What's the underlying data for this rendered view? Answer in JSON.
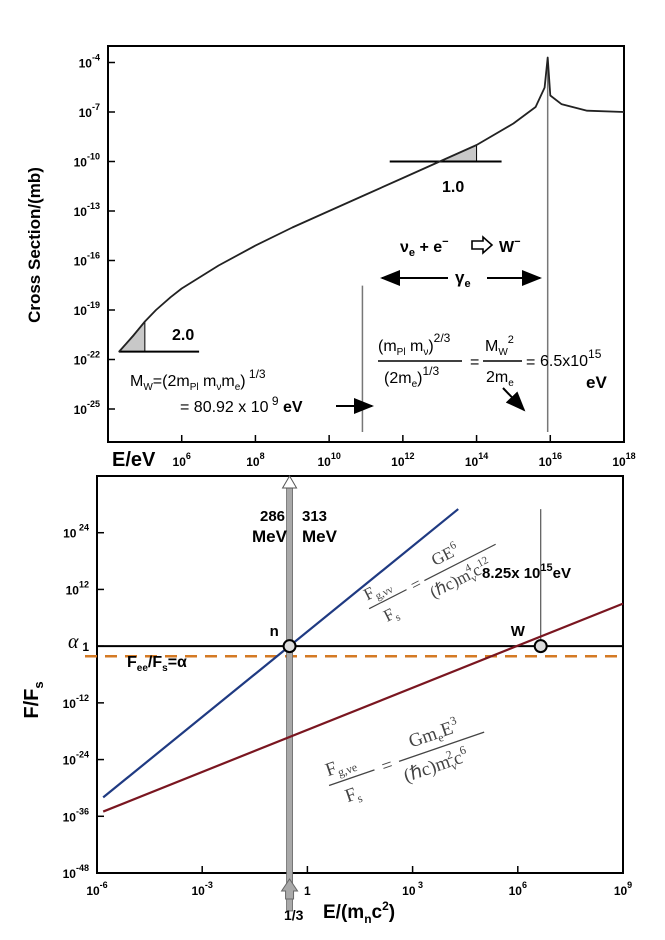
{
  "chart_data": [
    {
      "type": "line",
      "ylabel": "Cross Section/(mb)",
      "xlabel": "E/eV",
      "x_scale": "log",
      "y_scale": "log",
      "xlim_eV": [
        10000.0,
        1e+18
      ],
      "ylim_mb": [
        1e-27,
        0.001
      ],
      "x_ticks": [
        {
          "label": "10",
          "sup": "6",
          "value": 1000000.0
        },
        {
          "label": "10",
          "sup": "8",
          "value": 100000000.0
        },
        {
          "label": "10",
          "sup": "10",
          "value": 10000000000.0
        },
        {
          "label": "10",
          "sup": "12",
          "value": 1000000000000.0
        },
        {
          "label": "10",
          "sup": "14",
          "value": 100000000000000.0
        },
        {
          "label": "10",
          "sup": "16",
          "value": 1e+16
        },
        {
          "label": "10",
          "sup": "18",
          "value": 1e+18
        }
      ],
      "y_ticks": [
        {
          "label": "10",
          "sup": "-4",
          "value": 0.0001
        },
        {
          "label": "10",
          "sup": "-7",
          "value": 1e-07
        },
        {
          "label": "10",
          "sup": "-10",
          "value": 1e-10
        },
        {
          "label": "10",
          "sup": "-13",
          "value": 1e-13
        },
        {
          "label": "10",
          "sup": "-16",
          "value": 1e-16
        },
        {
          "label": "10",
          "sup": "-19",
          "value": 1e-19
        },
        {
          "label": "10",
          "sup": "-22",
          "value": 1e-22
        },
        {
          "label": "10",
          "sup": "-25",
          "value": 1e-25
        }
      ],
      "series": [
        {
          "points_eV_mb": [
            [
              20000.0,
              3e-22
            ],
            [
              50000.0,
              3e-21
            ],
            [
              100000.0,
              2e-20
            ],
            [
              200000.0,
              1e-19
            ],
            [
              500000.0,
              6e-19
            ],
            [
              1000000.0,
              2e-18
            ],
            [
              10000000.0,
              5e-17
            ],
            [
              100000000.0,
              8e-16
            ],
            [
              1000000000.0,
              1e-14
            ],
            [
              10000000000.0,
              1e-13
            ],
            [
              100000000000.0,
              1e-12
            ],
            [
              1000000000000.0,
              1e-11
            ],
            [
              10000000000000.0,
              1e-10
            ],
            [
              100000000000000.0,
              1e-09
            ],
            [
              1000000000000000.0,
              2e-08
            ],
            [
              4000000000000000.0,
              2e-07
            ],
            [
              7000000000000000.0,
              3e-06
            ],
            [
              8500000000000000.0,
              0.0002
            ],
            [
              1e+16,
              1e-06
            ],
            [
              2e+16,
              3e-07
            ],
            [
              1e+17,
              1.2e-07
            ],
            [
              1e+18,
              1e-07
            ]
          ]
        }
      ],
      "annotations": {
        "slope_low": "2.0",
        "slope_mid": "1.0",
        "reaction": {
          "a": "ν",
          "a_sub": "e",
          "b": " + e",
          "b_sup": "−",
          "c": "W",
          "c_sup": "−"
        },
        "gamma": {
          "main": "γ",
          "sub": "e"
        },
        "mw_formula": {
          "line1_a": "M",
          "line1_sub": "W",
          "line1_b": "=(2m",
          "line1_sub2": "Pl",
          "line1_c": " m",
          "line1_sub3": "ν",
          "line1_d": "m",
          "line1_sub4": "e",
          "line1_e": ")",
          "line1_sup": " 1/3",
          "line2": "= 80.92 x 10",
          "line2_sup": " 9",
          "line2_unit": " eV"
        },
        "ratio_formula": {
          "num_a": "(m",
          "num_sub": "Pl",
          "num_b": " m",
          "num_sub2": "ν",
          "num_c": ")",
          "num_sup": "2/3",
          "den_a": "(2m",
          "den_sub": "e",
          "den_b": ")",
          "den_sup": "1/3",
          "eq": "=",
          "mw_a": "M",
          "mw_sub": "W",
          "mw_sup": "2",
          "mw_den_a": "2m",
          "mw_den_sub": "e",
          "eq2": "=",
          "value": "6.5x10",
          "value_sup": "15",
          "unit": "eV"
        }
      }
    },
    {
      "type": "line",
      "ylabel": "F/F",
      "ylabel_sub": "s",
      "xlabel": "E/(m",
      "xlabel_sub": "n",
      "xlabel_end": "c",
      "xlabel_sup": "2",
      "xlabel_close": ")",
      "x_scale": "log",
      "y_scale": "log",
      "xlim": [
        1e-06,
        1000000000.0
      ],
      "ylim": [
        1e-48,
        1e+36
      ],
      "x_ticks": [
        {
          "label": "10",
          "sup": "-6",
          "value": 1e-06
        },
        {
          "label": "10",
          "sup": "-3",
          "value": 0.001
        },
        {
          "label": "1",
          "sup": "",
          "value": 1
        },
        {
          "label": "10",
          "sup": " 3",
          "value": 1000.0
        },
        {
          "label": "10",
          "sup": "6",
          "value": 1000000.0
        },
        {
          "label": "10",
          "sup": "9",
          "value": 1000000000.0
        }
      ],
      "y_ticks": [
        {
          "label": "10",
          "sup": " 24",
          "value": 1e+24
        },
        {
          "label": "10",
          "sup": "12",
          "value": 1000000000000.0
        },
        {
          "label": "1",
          "sup": "",
          "value": 1
        },
        {
          "label": "10",
          "sup": "-12",
          "value": 1e-12
        },
        {
          "label": "10",
          "sup": "-24",
          "value": 1e-24
        },
        {
          "label": "10",
          "sup": "-36",
          "value": 1e-36
        },
        {
          "label": "10",
          "sup": "-48",
          "value": 1e-48
        }
      ],
      "alpha_label": "α",
      "alpha_value": 0.0073,
      "series": [
        {
          "x": [
            1.5e-06,
            20000.0
          ],
          "y": [
            1e-32,
            1e+29
          ],
          "color": "#1f3a82"
        },
        {
          "x": [
            1.5e-06,
            1000000000.0
          ],
          "y": [
            1e-35,
            1000000000.0
          ],
          "color": "#7a1620"
        }
      ],
      "points": [
        {
          "label": "n",
          "x": 0.31,
          "y": 1
        },
        {
          "label": "W",
          "x": 4500000.0,
          "y": 1
        }
      ],
      "vertical_lines": [
        {
          "x": 0.31
        },
        {
          "x": 4500000.0,
          "y_top": 1e+29
        }
      ],
      "annotations": {
        "mev_left_num": "286",
        "mev_left_unit": "MeV",
        "mev_right_num": "313",
        "mev_right_unit": "MeV",
        "ew_value": "8.25x 10",
        "ew_sup": "15",
        "ew_unit": "eV",
        "third": "1/3",
        "fee": "F",
        "fee_sub": "ee",
        "fee_mid": "/F",
        "fee_sub2": "s",
        "fee_end": "=α",
        "fvv": {
          "F": "F",
          "sub": "g,νν",
          "eq": "=",
          "num": "GE",
          "num_sup": "6",
          "den_F": "F",
          "den_sub": "s",
          "den_a": "(ℏc)m",
          "den_sub2": "ν",
          "den_sup2": "4",
          "den_b": "c",
          "den_sup3": "12"
        },
        "fve": {
          "F": "F",
          "sub": "g,νe",
          "eq": "=",
          "num": "Gm",
          "num_sub": "e",
          "num_b": "E",
          "num_sup": "3",
          "den_F": "F",
          "den_sub": "s",
          "den_a": "(ℏc)m",
          "den_sub2": "ν",
          "den_sup2": "2",
          "den_b": "c",
          "den_sup3": "6"
        }
      }
    }
  ],
  "colors": {
    "curve": "#222222",
    "grey_fill": "#c8c8c8",
    "blue": "#1f3a82",
    "red": "#7a1620",
    "orange": "#d47a24",
    "arrow_grey": "#a9a9a9"
  }
}
